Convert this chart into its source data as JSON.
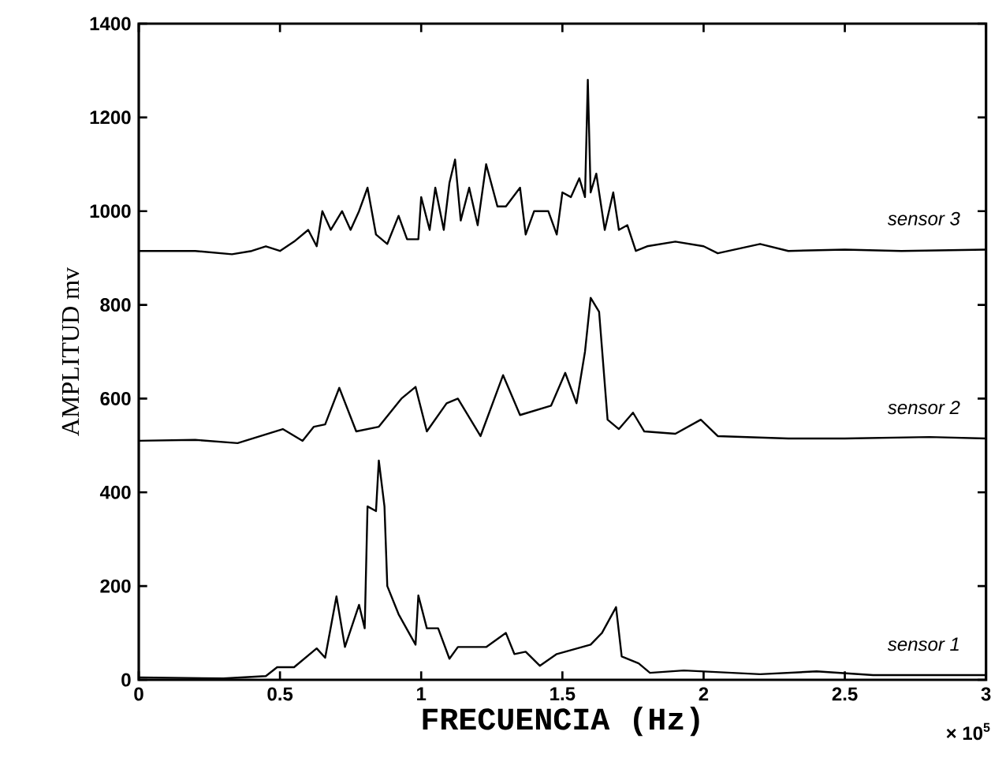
{
  "chart_data": {
    "type": "line",
    "xlabel": "FRECUENCIA (Hz)",
    "ylabel": "AMPLITUD mv",
    "annotations": [
      "× 10$^{5}$"
    ],
    "xlim": [
      0,
      3
    ],
    "ylim": [
      0,
      1400
    ],
    "xticks": [
      0,
      0.5,
      1,
      1.5,
      2,
      2.5,
      3
    ],
    "yticks": [
      0,
      200,
      400,
      600,
      800,
      1000,
      1200,
      1400
    ],
    "grid": false,
    "legend": "right",
    "marker": "none",
    "line_style": "solid",
    "series": [
      {
        "name": "sensor 1",
        "color": "#000000",
        "x": [
          0,
          0.3,
          0.45,
          0.49,
          0.55,
          0.63,
          0.66,
          0.7,
          0.73,
          0.78,
          0.8,
          0.81,
          0.84,
          0.85,
          0.87,
          0.88,
          0.92,
          0.98,
          0.99,
          1.02,
          1.06,
          1.1,
          1.13,
          1.23,
          1.3,
          1.33,
          1.37,
          1.42,
          1.48,
          1.54,
          1.6,
          1.64,
          1.69,
          1.71,
          1.77,
          1.81,
          1.93,
          2.2,
          2.4,
          2.6,
          3.0
        ],
        "values": [
          5,
          3,
          8,
          27,
          27,
          67,
          47,
          178,
          70,
          160,
          110,
          370,
          360,
          468,
          370,
          200,
          140,
          75,
          180,
          110,
          110,
          45,
          70,
          70,
          100,
          55,
          60,
          30,
          55,
          65,
          75,
          100,
          155,
          50,
          35,
          15,
          20,
          12,
          18,
          10,
          10
        ]
      },
      {
        "name": "sensor 2",
        "color": "#000000",
        "x": [
          0,
          0.2,
          0.35,
          0.51,
          0.58,
          0.62,
          0.66,
          0.71,
          0.77,
          0.85,
          0.93,
          0.98,
          1.02,
          1.09,
          1.13,
          1.21,
          1.29,
          1.35,
          1.46,
          1.51,
          1.55,
          1.58,
          1.6,
          1.63,
          1.66,
          1.7,
          1.75,
          1.79,
          1.9,
          1.99,
          2.05,
          2.3,
          2.5,
          2.8,
          3.0
        ],
        "values": [
          510,
          512,
          505,
          535,
          510,
          540,
          545,
          623,
          530,
          540,
          600,
          625,
          530,
          590,
          600,
          520,
          650,
          565,
          585,
          655,
          590,
          700,
          815,
          785,
          555,
          535,
          570,
          530,
          525,
          555,
          520,
          515,
          515,
          518,
          515
        ]
      },
      {
        "name": "sensor 3",
        "color": "#000000",
        "x": [
          0,
          0.2,
          0.33,
          0.4,
          0.45,
          0.5,
          0.55,
          0.6,
          0.63,
          0.65,
          0.68,
          0.72,
          0.75,
          0.78,
          0.81,
          0.84,
          0.88,
          0.92,
          0.95,
          0.99,
          1.0,
          1.03,
          1.05,
          1.08,
          1.1,
          1.12,
          1.14,
          1.17,
          1.2,
          1.23,
          1.27,
          1.3,
          1.35,
          1.37,
          1.4,
          1.45,
          1.48,
          1.5,
          1.53,
          1.56,
          1.58,
          1.59,
          1.6,
          1.62,
          1.65,
          1.68,
          1.7,
          1.73,
          1.76,
          1.8,
          1.9,
          2.0,
          2.05,
          2.2,
          2.3,
          2.5,
          2.7,
          3.0
        ],
        "values": [
          915,
          915,
          908,
          915,
          925,
          915,
          935,
          960,
          925,
          1000,
          960,
          1000,
          960,
          1000,
          1050,
          950,
          930,
          990,
          940,
          940,
          1030,
          960,
          1050,
          960,
          1060,
          1110,
          980,
          1050,
          970,
          1100,
          1010,
          1010,
          1050,
          950,
          1000,
          1000,
          950,
          1040,
          1030,
          1070,
          1030,
          1280,
          1040,
          1080,
          960,
          1040,
          960,
          970,
          915,
          925,
          935,
          925,
          910,
          930,
          915,
          918,
          915,
          918
        ]
      }
    ]
  }
}
